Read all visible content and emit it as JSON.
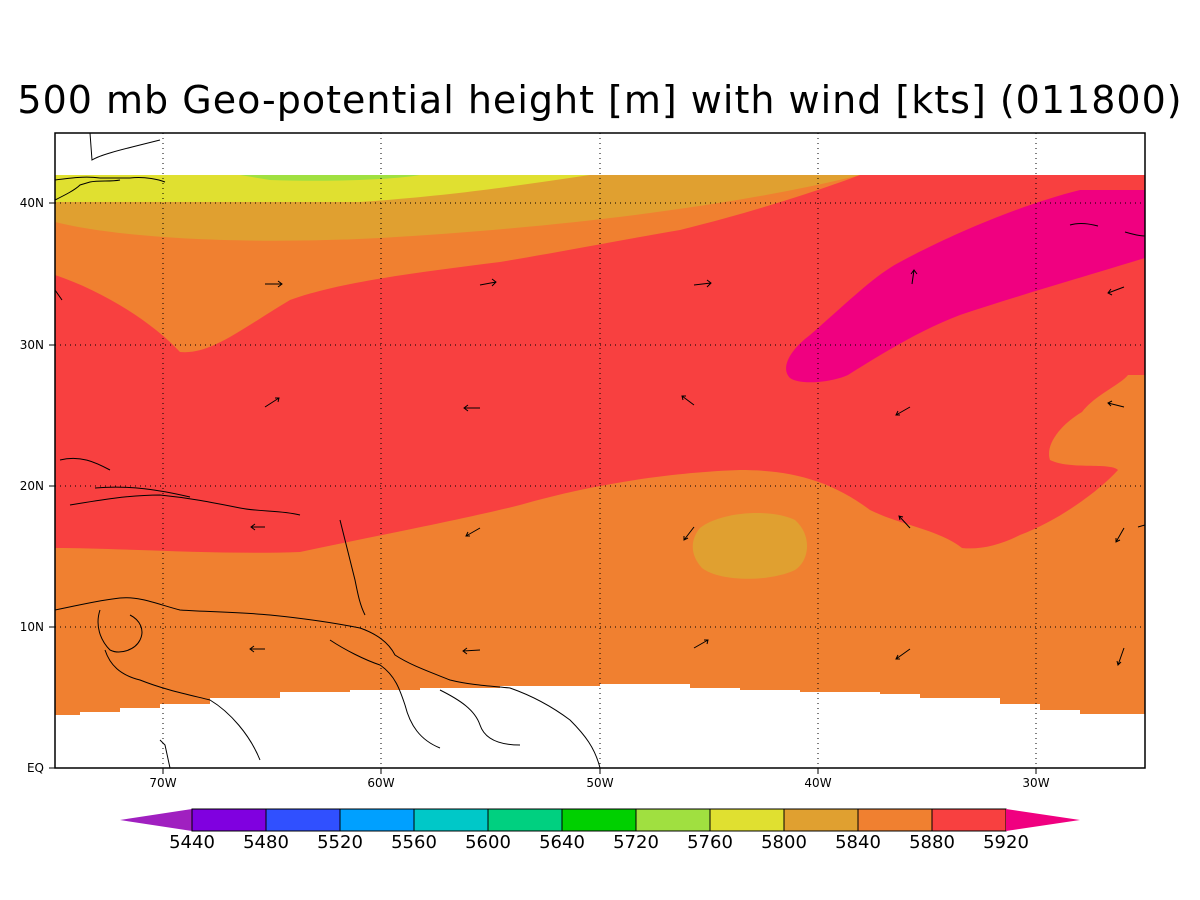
{
  "title": "500 mb Geo-potential height [m] with wind [kts] (011800)",
  "lat_labels": [
    "40N",
    "30N",
    "20N",
    "10N",
    "EQ"
  ],
  "lon_labels": [
    "70W",
    "60W",
    "50W",
    "40W",
    "30W"
  ],
  "colorbar": {
    "labels": [
      "5440",
      "5480",
      "5520",
      "5560",
      "5600",
      "5640",
      "5720",
      "5760",
      "5800",
      "5840",
      "5880",
      "5920"
    ],
    "colors": [
      "#a020c0",
      "#8000e0",
      "#3050ff",
      "#00a0ff",
      "#00c8c8",
      "#00d080",
      "#00d000",
      "#a0e040",
      "#e0e030",
      "#e0a030",
      "#f08030",
      "#f84040",
      "#f00080"
    ]
  },
  "colors": {
    "c5760": "#a0e040",
    "c5800": "#e0e030",
    "c5840": "#e0a030",
    "c5880": "#f08030",
    "c5920": "#f84040",
    "c5960": "#f00080",
    "coast": "#000000"
  }
}
